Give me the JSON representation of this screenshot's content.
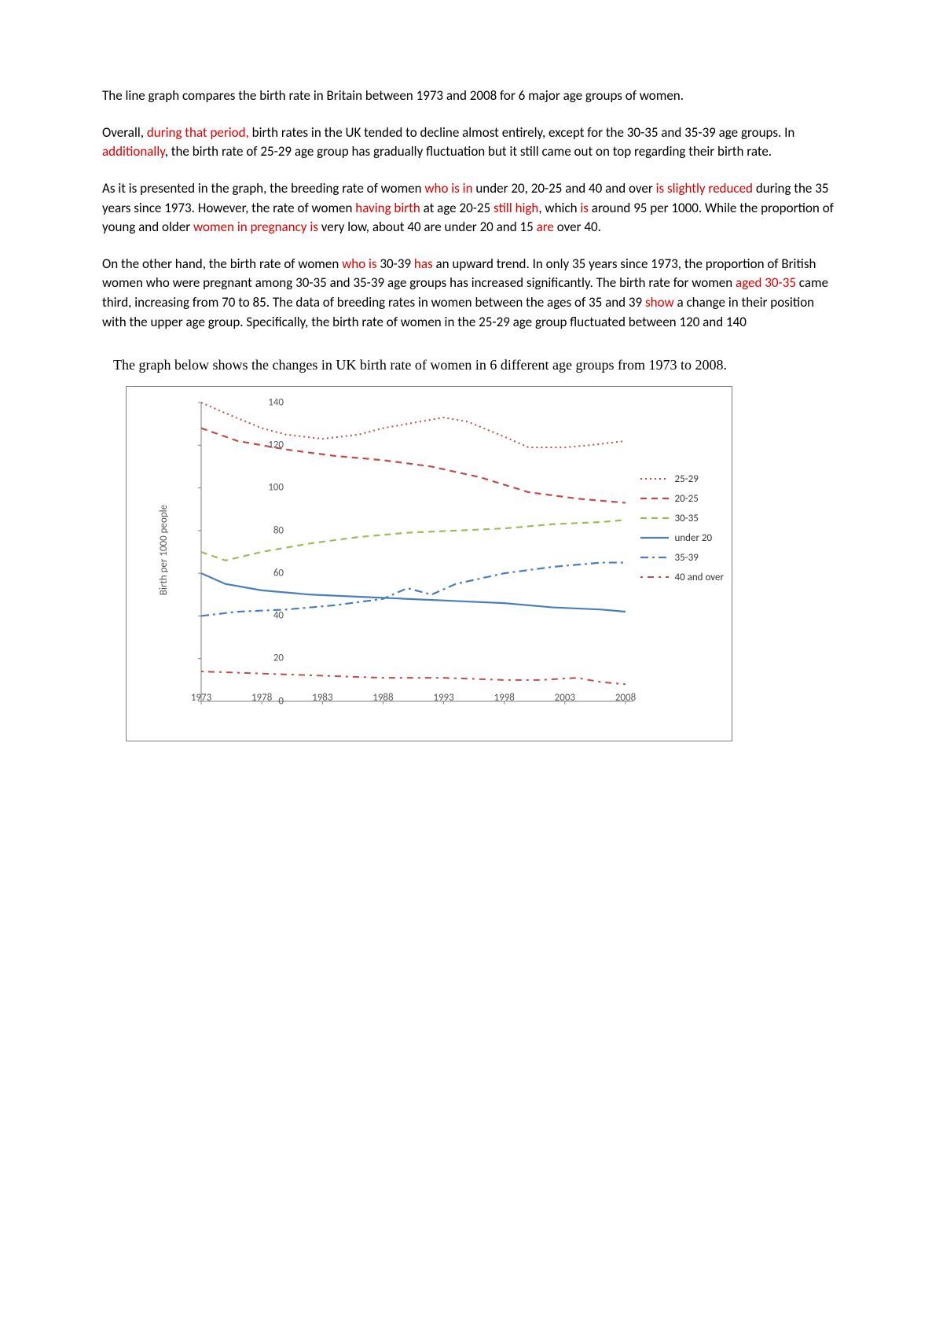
{
  "paragraphs": {
    "p1": [
      {
        "text": "The line graph compares the birth rate in Britain between 1973 and 2008 for 6 major age groups of women.",
        "red": false
      }
    ],
    "p2": [
      {
        "text": "Overall, ",
        "red": false
      },
      {
        "text": "during that period,",
        "red": true
      },
      {
        "text": " birth rates in the UK tended to decline almost entirely, except for the 30-35 and 35-39 age groups. In ",
        "red": false
      },
      {
        "text": "additionally",
        "red": true
      },
      {
        "text": ", the birth rate of 25-29 age group has gradually fluctuation but it still came out on top regarding their birth rate.",
        "red": false
      }
    ],
    "p3": [
      {
        "text": "As it is presented in the graph, the breeding rate of women ",
        "red": false
      },
      {
        "text": "who is in",
        "red": true
      },
      {
        "text": " under 20, 20-25 and 40 and over ",
        "red": false
      },
      {
        "text": "is slightly reduced",
        "red": true
      },
      {
        "text": " during the 35 years since 1973. However, the rate of women ",
        "red": false
      },
      {
        "text": "having birth",
        "red": true
      },
      {
        "text": " at age 20-25 ",
        "red": false
      },
      {
        "text": "still high",
        "red": true
      },
      {
        "text": ", which ",
        "red": false
      },
      {
        "text": "is",
        "red": true
      },
      {
        "text": " around 95 per 1000. While the proportion of young and older ",
        "red": false
      },
      {
        "text": "women in pregnancy is",
        "red": true
      },
      {
        "text": " very low, about 40 are under 20 and 15 ",
        "red": false
      },
      {
        "text": "are",
        "red": true
      },
      {
        "text": " over 40.",
        "red": false
      }
    ],
    "p4": [
      {
        "text": "On the other hand, the birth rate of women ",
        "red": false
      },
      {
        "text": "who is",
        "red": true
      },
      {
        "text": " 30-39 ",
        "red": false
      },
      {
        "text": "has",
        "red": true
      },
      {
        "text": " an upward trend. In only 35 years since 1973, the proportion of British women who were pregnant among 30-35 and 35-39 age groups has increased significantly. The birth rate for women ",
        "red": false
      },
      {
        "text": "aged 30-35",
        "red": true
      },
      {
        "text": " came third, increasing from 70 to 85. The data of breeding rates in women between the ages of 35 and 39 ",
        "red": false
      },
      {
        "text": "show",
        "red": true
      },
      {
        "text": " a change in their position with the upper age group. Specifically, the birth rate of women in the 25-29 age group fluctuated between 120 and 140",
        "red": false
      }
    ]
  },
  "chart": {
    "title": "The graph below shows the changes in UK birth rate of women in 6 different age groups from 1973 to 2008.",
    "type": "line",
    "y_axis_label": "Birth per 1000 people",
    "x_ticks": [
      "1973",
      "1978",
      "1983",
      "1988",
      "1993",
      "1998",
      "2003",
      "2008"
    ],
    "y_ticks": [
      0,
      20,
      40,
      60,
      80,
      100,
      120,
      140
    ],
    "ylim": [
      0,
      140
    ],
    "xlim": [
      1973,
      2008
    ],
    "background_color": "#ffffff",
    "axis_color": "#7f7f7f",
    "tick_fontsize": 13,
    "label_fontsize": 13,
    "series": [
      {
        "name": "25-29",
        "color": "#be4b48",
        "dash": "2,4",
        "dot": true,
        "width": 2,
        "points": [
          [
            1973,
            140
          ],
          [
            1975,
            135
          ],
          [
            1978,
            128
          ],
          [
            1980,
            125
          ],
          [
            1983,
            123
          ],
          [
            1986,
            125
          ],
          [
            1988,
            128
          ],
          [
            1991,
            131
          ],
          [
            1993,
            133
          ],
          [
            1995,
            131
          ],
          [
            1998,
            124
          ],
          [
            2000,
            119
          ],
          [
            2003,
            119
          ],
          [
            2005,
            120
          ],
          [
            2008,
            122
          ]
        ]
      },
      {
        "name": "20-25",
        "color": "#be4b48",
        "dash": "8,6",
        "width": 2.2,
        "points": [
          [
            1973,
            128
          ],
          [
            1976,
            122
          ],
          [
            1980,
            118
          ],
          [
            1984,
            115
          ],
          [
            1988,
            113
          ],
          [
            1992,
            110
          ],
          [
            1996,
            105
          ],
          [
            2000,
            98
          ],
          [
            2004,
            95
          ],
          [
            2008,
            93
          ]
        ]
      },
      {
        "name": "30-35",
        "color": "#9bbb59",
        "dash": "8,6",
        "width": 2.2,
        "points": [
          [
            1973,
            70
          ],
          [
            1975,
            66
          ],
          [
            1978,
            70
          ],
          [
            1982,
            74
          ],
          [
            1986,
            77
          ],
          [
            1990,
            79
          ],
          [
            1994,
            80
          ],
          [
            1998,
            81
          ],
          [
            2002,
            83
          ],
          [
            2006,
            84
          ],
          [
            2008,
            85
          ]
        ]
      },
      {
        "name": "under 20",
        "color": "#4a7ebb",
        "dash": "",
        "width": 2.2,
        "points": [
          [
            1973,
            60
          ],
          [
            1975,
            55
          ],
          [
            1978,
            52
          ],
          [
            1982,
            50
          ],
          [
            1986,
            49
          ],
          [
            1990,
            48
          ],
          [
            1994,
            47
          ],
          [
            1998,
            46
          ],
          [
            2002,
            44
          ],
          [
            2006,
            43
          ],
          [
            2008,
            42
          ]
        ]
      },
      {
        "name": "35-39",
        "color": "#4a7ebb",
        "dash": "10,5,3,5",
        "width": 2.2,
        "points": [
          [
            1973,
            40
          ],
          [
            1976,
            42
          ],
          [
            1980,
            43
          ],
          [
            1984,
            45
          ],
          [
            1988,
            48
          ],
          [
            1990,
            53
          ],
          [
            1992,
            50
          ],
          [
            1994,
            55
          ],
          [
            1998,
            60
          ],
          [
            2002,
            63
          ],
          [
            2006,
            65
          ],
          [
            2008,
            65
          ]
        ]
      },
      {
        "name": "40 and over",
        "color": "#be4b48",
        "dash": "3,6,8,6",
        "width": 2,
        "points": [
          [
            1973,
            14
          ],
          [
            1978,
            13
          ],
          [
            1983,
            12
          ],
          [
            1988,
            11
          ],
          [
            1993,
            11
          ],
          [
            1998,
            10
          ],
          [
            2001,
            10
          ],
          [
            2004,
            11
          ],
          [
            2006,
            9
          ],
          [
            2008,
            8
          ]
        ]
      }
    ],
    "legend_labels": {
      "s1": "25-29",
      "s2": "20-25",
      "s3": "30-35",
      "s4": "under 20",
      "s5": "35-39",
      "s6": "40 and over"
    }
  }
}
